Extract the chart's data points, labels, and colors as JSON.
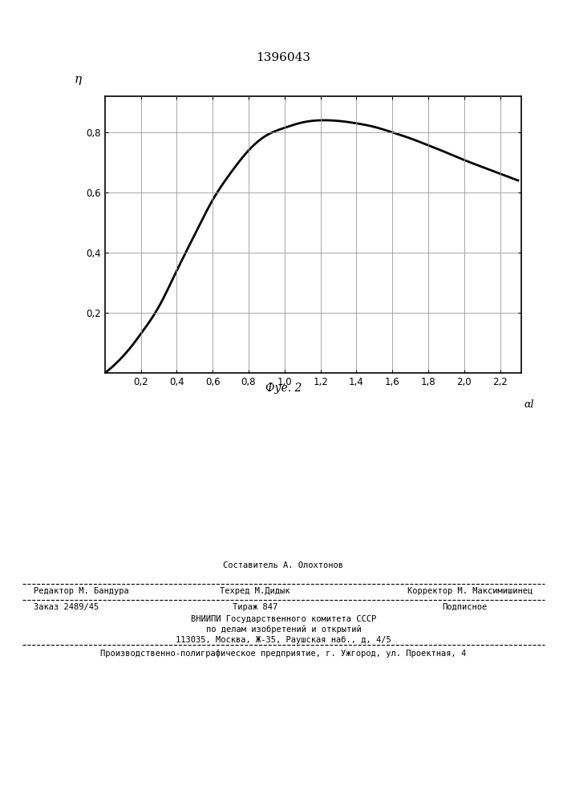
{
  "patent_number": "1396043",
  "fig_label": "Фуе. 2",
  "ytick_labels": [
    "0,2",
    "0,4",
    "0,6",
    "0,8"
  ],
  "ytick_values": [
    0.2,
    0.4,
    0.6,
    0.8
  ],
  "xtick_labels": [
    "0,2",
    "0,4",
    "0,6",
    "0,8",
    "1,0",
    "1,2",
    "1,4",
    "1,6",
    "1,8",
    "2,0",
    "2,2"
  ],
  "xtick_values": [
    0.2,
    0.4,
    0.6,
    0.8,
    1.0,
    1.2,
    1.4,
    1.6,
    1.8,
    2.0,
    2.2
  ],
  "xmin": 0.0,
  "xmax": 2.32,
  "ymin": 0.0,
  "ymax": 0.92,
  "curve_color": "#000000",
  "curve_linewidth": 2.0,
  "grid_color": "#999999",
  "grid_linewidth": 0.6,
  "bg_color": "#ffffff",
  "curve_x": [
    0.0,
    0.05,
    0.1,
    0.15,
    0.2,
    0.3,
    0.4,
    0.5,
    0.6,
    0.7,
    0.8,
    0.9,
    1.0,
    1.1,
    1.2,
    1.3,
    1.4,
    1.5,
    1.6,
    1.7,
    1.8,
    1.9,
    2.0,
    2.1,
    2.2,
    2.3
  ],
  "curve_y": [
    0.0,
    0.025,
    0.055,
    0.09,
    0.13,
    0.22,
    0.34,
    0.46,
    0.575,
    0.665,
    0.74,
    0.79,
    0.815,
    0.833,
    0.84,
    0.838,
    0.83,
    0.818,
    0.8,
    0.78,
    0.757,
    0.733,
    0.708,
    0.685,
    0.662,
    0.64
  ],
  "footer_sestavitel": "Составитель А. Олохтонов",
  "footer_redaktor": "Редактор М. Бандура",
  "footer_tehred": "Техред М.Дидык",
  "footer_korrektor": "Корректор М. Максимишинец",
  "footer_zakaz": "Заказ 2489/45",
  "footer_tirazh": "Тираж 847",
  "footer_podpisnoe": "Подписное",
  "footer_vnipi1": "ВНИИПИ Государственного комитета СССР",
  "footer_vnipi2": "по делам изобретений и открытий",
  "footer_vnipi3": "113035, Москва, Ж-35, Раушская наб., д, 4/5",
  "footer_last": "Производственно-полиграфическое предприятие, г. Ужгород, ул. Проектная, 4"
}
